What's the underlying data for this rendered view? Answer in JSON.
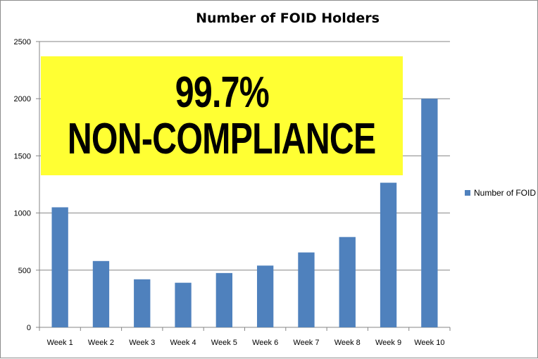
{
  "chart_data": {
    "type": "bar",
    "title": "Number of FOID Holders",
    "categories": [
      "Week 1",
      "Week 2",
      "Week 3",
      "Week 4",
      "Week 5",
      "Week 6",
      "Week 7",
      "Week 8",
      "Week 9",
      "Week 10"
    ],
    "series": [
      {
        "name": "Number of FOID Holders",
        "color": "#4f81bd",
        "values": [
          1050,
          580,
          420,
          390,
          475,
          540,
          655,
          790,
          1265,
          2000
        ]
      }
    ],
    "yticks": [
      0,
      500,
      1000,
      1500,
      2000,
      2500
    ],
    "ylim": [
      0,
      2500
    ],
    "xlabel": "",
    "ylabel": "",
    "grid": true,
    "legend_position": "right"
  },
  "legend": {
    "label": "Number of FOID H"
  },
  "callout": {
    "line1": "99.7%",
    "line2": "NON-COMPLIANCE",
    "background": "#ffff33"
  }
}
